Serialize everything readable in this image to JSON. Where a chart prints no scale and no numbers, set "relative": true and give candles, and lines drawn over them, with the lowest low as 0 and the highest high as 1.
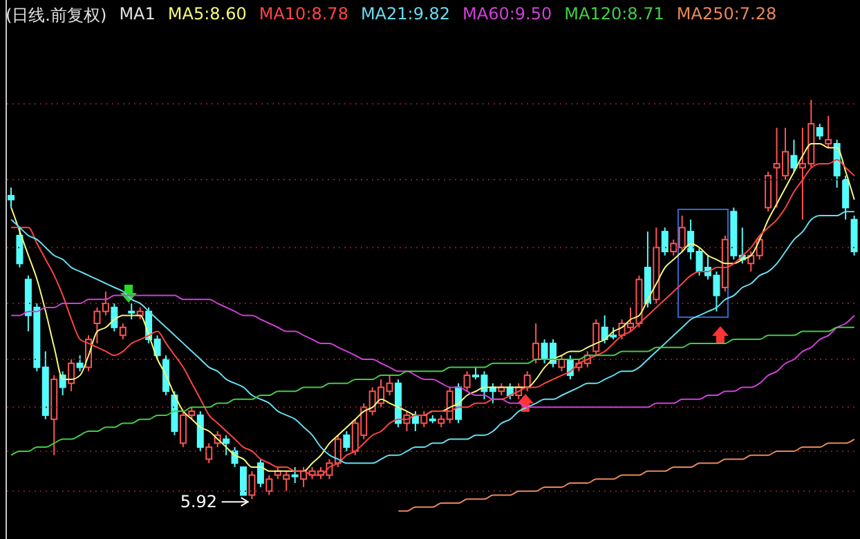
{
  "chart_data": {
    "type": "candlestick",
    "title": "(日线.前复权)",
    "relative": true,
    "legend": "top left",
    "categories": [
      null,
      null,
      null,
      null,
      null,
      null,
      null,
      null,
      null,
      null,
      null,
      null,
      null,
      null,
      null,
      null,
      null,
      null,
      null,
      null,
      null,
      null,
      null,
      null,
      null,
      null,
      null,
      null,
      null,
      null,
      null,
      null,
      null,
      null,
      null,
      null,
      null,
      null,
      null,
      null,
      null,
      null,
      null,
      null,
      null,
      null,
      null,
      null,
      null,
      null,
      null,
      null,
      null,
      null,
      null,
      null,
      null,
      null,
      null,
      null,
      null,
      null,
      null,
      null,
      null,
      null,
      null,
      null,
      null,
      null,
      null,
      null,
      null,
      null,
      null,
      null,
      null,
      null,
      null,
      null,
      null,
      null,
      null,
      null,
      null,
      null,
      null,
      null,
      null,
      null,
      null,
      null,
      null,
      null,
      null,
      null,
      null,
      null,
      null
    ],
    "ohlc": [
      [
        0.76,
        0.78,
        0.73,
        0.75
      ],
      [
        0.66,
        0.68,
        0.58,
        0.59
      ],
      [
        0.55,
        0.56,
        0.42,
        0.46
      ],
      [
        0.48,
        0.49,
        0.32,
        0.33
      ],
      [
        0.33,
        0.37,
        0.2,
        0.21
      ],
      [
        0.2,
        0.31,
        0.11,
        0.3
      ],
      [
        0.31,
        0.32,
        0.26,
        0.28
      ],
      [
        0.29,
        0.35,
        0.27,
        0.34
      ],
      [
        0.34,
        0.36,
        0.32,
        0.33
      ],
      [
        0.33,
        0.41,
        0.32,
        0.4
      ],
      [
        0.44,
        0.48,
        0.39,
        0.47
      ],
      [
        0.47,
        0.52,
        0.46,
        0.49
      ],
      [
        0.48,
        0.49,
        0.42,
        0.43
      ],
      [
        0.41,
        0.44,
        0.4,
        0.43
      ],
      [
        0.47,
        0.49,
        0.45,
        0.47
      ],
      [
        0.46,
        0.48,
        0.45,
        0.47
      ],
      [
        0.47,
        0.48,
        0.39,
        0.4
      ],
      [
        0.4,
        0.41,
        0.35,
        0.36
      ],
      [
        0.35,
        0.36,
        0.26,
        0.27
      ],
      [
        0.26,
        0.27,
        0.16,
        0.17
      ],
      [
        0.14,
        0.22,
        0.13,
        0.21
      ],
      [
        0.21,
        0.23,
        0.2,
        0.22
      ],
      [
        0.21,
        0.22,
        0.12,
        0.13
      ],
      [
        0.1,
        0.14,
        0.09,
        0.13
      ],
      [
        0.14,
        0.17,
        0.13,
        0.16
      ],
      [
        0.15,
        0.16,
        0.11,
        0.14
      ],
      [
        0.12,
        0.13,
        0.08,
        0.09
      ],
      [
        0.08,
        0.08,
        0.01,
        0.01
      ],
      [
        0.01,
        0.07,
        0,
        0.06
      ],
      [
        0.09,
        0.1,
        0.03,
        0.04
      ],
      [
        0.02,
        0.06,
        0.01,
        0.05
      ],
      [
        0.06,
        0.08,
        0.05,
        0.07
      ],
      [
        0.05,
        0.07,
        0.02,
        0.06
      ],
      [
        0.06,
        0.08,
        0.04,
        0.06
      ],
      [
        0.05,
        0.08,
        0.03,
        0.07
      ],
      [
        0.06,
        0.08,
        0.05,
        0.07
      ],
      [
        0.06,
        0.08,
        0.05,
        0.07
      ],
      [
        0.06,
        0.1,
        0.05,
        0.09
      ],
      [
        0.09,
        0.16,
        0.08,
        0.15
      ],
      [
        0.16,
        0.17,
        0.12,
        0.13
      ],
      [
        0.12,
        0.2,
        0.11,
        0.19
      ],
      [
        0.16,
        0.24,
        0.15,
        0.23
      ],
      [
        0.22,
        0.28,
        0.21,
        0.27
      ],
      [
        0.24,
        0.3,
        0.23,
        0.28
      ],
      [
        0.27,
        0.31,
        0.26,
        0.29
      ],
      [
        0.29,
        0.3,
        0.18,
        0.19
      ],
      [
        0.19,
        0.22,
        0.17,
        0.21
      ],
      [
        0.21,
        0.22,
        0.17,
        0.19
      ],
      [
        0.19,
        0.22,
        0.18,
        0.21
      ],
      [
        0.2,
        0.21,
        0.19,
        0.2
      ],
      [
        0.19,
        0.21,
        0.18,
        0.2
      ],
      [
        0.2,
        0.28,
        0.19,
        0.27
      ],
      [
        0.28,
        0.29,
        0.19,
        0.2
      ],
      [
        0.28,
        0.32,
        0.27,
        0.31
      ],
      [
        0.31,
        0.33,
        0.3,
        0.31
      ],
      [
        0.31,
        0.32,
        0.25,
        0.27
      ],
      [
        0.28,
        0.29,
        0.24,
        0.27
      ],
      [
        0.27,
        0.29,
        0.26,
        0.28
      ],
      [
        0.28,
        0.29,
        0.25,
        0.26
      ],
      [
        0.26,
        0.29,
        0.25,
        0.28
      ],
      [
        0.28,
        0.32,
        0.27,
        0.31
      ],
      [
        0.35,
        0.44,
        0.34,
        0.39
      ],
      [
        0.39,
        0.4,
        0.34,
        0.35
      ],
      [
        0.39,
        0.4,
        0.33,
        0.34
      ],
      [
        0.33,
        0.36,
        0.32,
        0.35
      ],
      [
        0.35,
        0.36,
        0.3,
        0.31
      ],
      [
        0.33,
        0.35,
        0.32,
        0.34
      ],
      [
        0.34,
        0.37,
        0.33,
        0.36
      ],
      [
        0.37,
        0.45,
        0.36,
        0.44
      ],
      [
        0.43,
        0.46,
        0.39,
        0.4
      ],
      [
        0.41,
        0.43,
        0.4,
        0.41
      ],
      [
        0.41,
        0.45,
        0.4,
        0.44
      ],
      [
        0.43,
        0.48,
        0.42,
        0.44
      ],
      [
        0.44,
        0.56,
        0.43,
        0.55
      ],
      [
        0.58,
        0.67,
        0.48,
        0.49
      ],
      [
        0.5,
        0.68,
        0.49,
        0.63
      ],
      [
        0.67,
        0.68,
        0.61,
        0.62
      ],
      [
        0.62,
        0.65,
        0.61,
        0.64
      ],
      [
        0.63,
        0.71,
        0.62,
        0.68
      ],
      [
        0.67,
        0.7,
        0.6,
        0.62
      ],
      [
        0.62,
        0.63,
        0.56,
        0.57
      ],
      [
        0.58,
        0.61,
        0.55,
        0.56
      ],
      [
        0.56,
        0.57,
        0.47,
        0.51
      ],
      [
        0.53,
        0.66,
        0.52,
        0.65
      ],
      [
        0.72,
        0.73,
        0.6,
        0.61
      ],
      [
        0.61,
        0.68,
        0.59,
        0.6
      ],
      [
        0.59,
        0.62,
        0.57,
        0.61
      ],
      [
        0.61,
        0.66,
        0.6,
        0.65
      ],
      [
        0.73,
        0.82,
        0.72,
        0.81
      ],
      [
        0.83,
        0.93,
        0.73,
        0.84
      ],
      [
        0.81,
        0.93,
        0.8,
        0.87
      ],
      [
        0.86,
        0.9,
        0.82,
        0.83
      ],
      [
        0.83,
        0.93,
        0.7,
        0.84
      ],
      [
        0.84,
        1,
        0.83,
        0.94
      ],
      [
        0.93,
        0.94,
        0.9,
        0.91
      ],
      [
        0.89,
        0.96,
        0.88,
        0.9
      ],
      [
        0.89,
        0.9,
        0.78,
        0.81
      ],
      [
        0.8,
        0.81,
        0.7,
        0.73
      ],
      [
        0.7,
        0.71,
        0.61,
        0.62
      ]
    ],
    "series": [
      {
        "type": "line",
        "name": "MA5:8.60",
        "color": "#f8f87a",
        "values": [
          0.73,
          0.67,
          0.61,
          0.55,
          0.47,
          0.38,
          0.3,
          0.3,
          0.31,
          0.36,
          0.42,
          0.43,
          0.45,
          0.46,
          0.46,
          0.46,
          0.41,
          0.35,
          0.31,
          0.26,
          0.22,
          0.2,
          0.18,
          0.17,
          0.15,
          0.13,
          0.11,
          0.1,
          0.08,
          0.08,
          0.07,
          0.07,
          0.07,
          0.07,
          0.07,
          0.09,
          0.11,
          0.14,
          0.16,
          0.18,
          0.2,
          0.22,
          0.23,
          0.25,
          0.24,
          0.23,
          0.22,
          0.21,
          0.21,
          0.22,
          0.22,
          0.23,
          0.24,
          0.26,
          0.27,
          0.28,
          0.28,
          0.28,
          0.28,
          0.28,
          0.28,
          0.3,
          0.33,
          0.35,
          0.36,
          0.37,
          0.37,
          0.38,
          0.39,
          0.4,
          0.42,
          0.43,
          0.45,
          0.46,
          0.5,
          0.54,
          0.58,
          0.6,
          0.62,
          0.64,
          0.63,
          0.61,
          0.6,
          0.59,
          0.59,
          0.6,
          0.61,
          0.65,
          0.7,
          0.74,
          0.78,
          0.82,
          0.86,
          0.89,
          0.89,
          0.88,
          0.88,
          0.82,
          0.75
        ]
      },
      {
        "type": "line",
        "name": "MA10:8.78",
        "color": "#ff4444",
        "values": [
          0.68,
          0.68,
          0.68,
          0.64,
          0.6,
          0.56,
          0.51,
          0.45,
          0.4,
          0.39,
          0.38,
          0.37,
          0.36,
          0.37,
          0.39,
          0.4,
          0.41,
          0.42,
          0.39,
          0.36,
          0.33,
          0.29,
          0.25,
          0.21,
          0.19,
          0.17,
          0.15,
          0.13,
          0.12,
          0.1,
          0.09,
          0.08,
          0.08,
          0.07,
          0.07,
          0.06,
          0.06,
          0.08,
          0.09,
          0.11,
          0.12,
          0.14,
          0.16,
          0.17,
          0.19,
          0.2,
          0.2,
          0.21,
          0.21,
          0.22,
          0.22,
          0.22,
          0.23,
          0.23,
          0.24,
          0.24,
          0.25,
          0.25,
          0.26,
          0.27,
          0.28,
          0.28,
          0.29,
          0.3,
          0.31,
          0.32,
          0.34,
          0.35,
          0.36,
          0.37,
          0.39,
          0.41,
          0.42,
          0.44,
          0.46,
          0.48,
          0.5,
          0.52,
          0.54,
          0.56,
          0.57,
          0.57,
          0.58,
          0.58,
          0.59,
          0.61,
          0.63,
          0.66,
          0.68,
          0.7,
          0.73,
          0.77,
          0.8,
          0.83,
          0.84,
          0.84,
          0.85,
          0.83,
          0.81
        ]
      },
      {
        "type": "line",
        "name": "MA21:9.82",
        "color": "#66ddee",
        "values": [
          0.7,
          0.68,
          0.66,
          0.65,
          0.63,
          0.61,
          0.6,
          0.58,
          0.57,
          0.56,
          0.55,
          0.54,
          0.53,
          0.52,
          0.5,
          0.49,
          0.47,
          0.45,
          0.43,
          0.41,
          0.39,
          0.37,
          0.35,
          0.33,
          0.32,
          0.3,
          0.29,
          0.28,
          0.26,
          0.25,
          0.24,
          0.22,
          0.21,
          0.2,
          0.18,
          0.16,
          0.13,
          0.11,
          0.1,
          0.09,
          0.09,
          0.09,
          0.09,
          0.1,
          0.11,
          0.11,
          0.12,
          0.13,
          0.13,
          0.14,
          0.14,
          0.15,
          0.15,
          0.15,
          0.16,
          0.16,
          0.17,
          0.19,
          0.2,
          0.22,
          0.23,
          0.24,
          0.25,
          0.25,
          0.26,
          0.27,
          0.28,
          0.29,
          0.29,
          0.3,
          0.31,
          0.32,
          0.32,
          0.33,
          0.35,
          0.37,
          0.39,
          0.41,
          0.43,
          0.45,
          0.46,
          0.47,
          0.48,
          0.5,
          0.51,
          0.53,
          0.54,
          0.56,
          0.57,
          0.59,
          0.62,
          0.65,
          0.67,
          0.7,
          0.71,
          0.71,
          0.71,
          0.72,
          0.72
        ]
      },
      {
        "type": "line",
        "name": "MA60:9.50",
        "color": "#d040d8",
        "values": [
          0.46,
          0.46,
          0.47,
          0.47,
          0.48,
          0.48,
          0.49,
          0.49,
          0.49,
          0.5,
          0.5,
          0.5,
          0.51,
          0.51,
          0.51,
          0.51,
          0.51,
          0.51,
          0.51,
          0.51,
          0.5,
          0.5,
          0.5,
          0.5,
          0.49,
          0.48,
          0.47,
          0.46,
          0.46,
          0.45,
          0.44,
          0.43,
          0.42,
          0.42,
          0.41,
          0.4,
          0.39,
          0.39,
          0.38,
          0.37,
          0.36,
          0.35,
          0.35,
          0.34,
          0.33,
          0.32,
          0.32,
          0.31,
          0.3,
          0.3,
          0.29,
          0.28,
          0.28,
          0.27,
          0.26,
          0.26,
          0.25,
          0.25,
          0.24,
          0.24,
          0.23,
          0.23,
          0.23,
          0.23,
          0.23,
          0.23,
          0.23,
          0.23,
          0.23,
          0.23,
          0.23,
          0.23,
          0.23,
          0.23,
          0.23,
          0.24,
          0.24,
          0.24,
          0.25,
          0.25,
          0.25,
          0.26,
          0.26,
          0.27,
          0.27,
          0.28,
          0.28,
          0.29,
          0.31,
          0.32,
          0.34,
          0.35,
          0.37,
          0.38,
          0.4,
          0.41,
          0.43,
          0.44,
          0.46
        ]
      },
      {
        "type": "line",
        "name": "MA120:8.71",
        "color": "#44cc44",
        "values": [
          0.11,
          0.12,
          0.12,
          0.13,
          0.13,
          0.14,
          0.15,
          0.15,
          0.16,
          0.17,
          0.17,
          0.18,
          0.18,
          0.19,
          0.19,
          0.2,
          0.2,
          0.21,
          0.21,
          0.22,
          0.22,
          0.23,
          0.23,
          0.23,
          0.24,
          0.24,
          0.25,
          0.25,
          0.25,
          0.26,
          0.26,
          0.27,
          0.27,
          0.27,
          0.28,
          0.28,
          0.28,
          0.29,
          0.29,
          0.29,
          0.3,
          0.3,
          0.3,
          0.31,
          0.31,
          0.31,
          0.32,
          0.32,
          0.32,
          0.32,
          0.32,
          0.33,
          0.33,
          0.33,
          0.33,
          0.33,
          0.34,
          0.34,
          0.34,
          0.34,
          0.34,
          0.35,
          0.35,
          0.35,
          0.35,
          0.35,
          0.35,
          0.36,
          0.36,
          0.36,
          0.36,
          0.37,
          0.37,
          0.37,
          0.37,
          0.38,
          0.38,
          0.38,
          0.38,
          0.39,
          0.39,
          0.39,
          0.39,
          0.39,
          0.4,
          0.4,
          0.4,
          0.4,
          0.41,
          0.41,
          0.41,
          0.41,
          0.42,
          0.42,
          0.42,
          0.42,
          0.43,
          0.43,
          0.43
        ]
      },
      {
        "type": "line",
        "name": "MA250:7.28",
        "color": "#e8885a",
        "values": [
          null,
          null,
          null,
          null,
          null,
          null,
          null,
          null,
          null,
          null,
          null,
          null,
          null,
          null,
          null,
          null,
          null,
          null,
          null,
          null,
          null,
          null,
          null,
          null,
          null,
          null,
          null,
          null,
          null,
          null,
          null,
          null,
          null,
          null,
          null,
          null,
          null,
          null,
          null,
          null,
          null,
          null,
          null,
          null,
          null,
          -0.03,
          -0.03,
          -0.02,
          -0.02,
          -0.02,
          -0.01,
          -0.01,
          -0.01,
          0,
          0,
          0,
          0.01,
          0.01,
          0.01,
          0.02,
          0.02,
          0.02,
          0.03,
          0.03,
          0.03,
          0.04,
          0.04,
          0.04,
          0.05,
          0.05,
          0.05,
          0.06,
          0.06,
          0.06,
          0.07,
          0.07,
          0.07,
          0.08,
          0.08,
          0.08,
          0.09,
          0.09,
          0.09,
          0.1,
          0.1,
          0.1,
          0.11,
          0.11,
          0.11,
          0.12,
          0.12,
          0.12,
          0.13,
          0.13,
          0.13,
          0.14,
          0.14,
          0.14,
          0.15
        ]
      }
    ],
    "annotations": [
      "MA1",
      "5.92"
    ],
    "ref_lines": [
      {
        "axis": "y",
        "value": 0.99,
        "color": "#8a1a1a",
        "line_style": "dotted"
      },
      {
        "axis": "y",
        "value": 0.8,
        "color": "#8a1a1a",
        "line_style": "dotted"
      },
      {
        "axis": "y",
        "value": 0.63,
        "color": "#8a1a1a",
        "line_style": "dotted"
      },
      {
        "axis": "y",
        "value": 0.49,
        "color": "#8a1a1a",
        "line_style": "dotted"
      },
      {
        "axis": "y",
        "value": 0.35,
        "color": "#8a1a1a",
        "line_style": "dotted"
      },
      {
        "axis": "y",
        "value": 0.23,
        "color": "#8a1a1a",
        "line_style": "dotted"
      },
      {
        "axis": "y",
        "value": 0.12,
        "color": "#8a1a1a",
        "line_style": "dotted"
      },
      {
        "axis": "y",
        "value": 0.02,
        "color": "#8a1a1a",
        "line_style": "dotted"
      }
    ]
  }
}
